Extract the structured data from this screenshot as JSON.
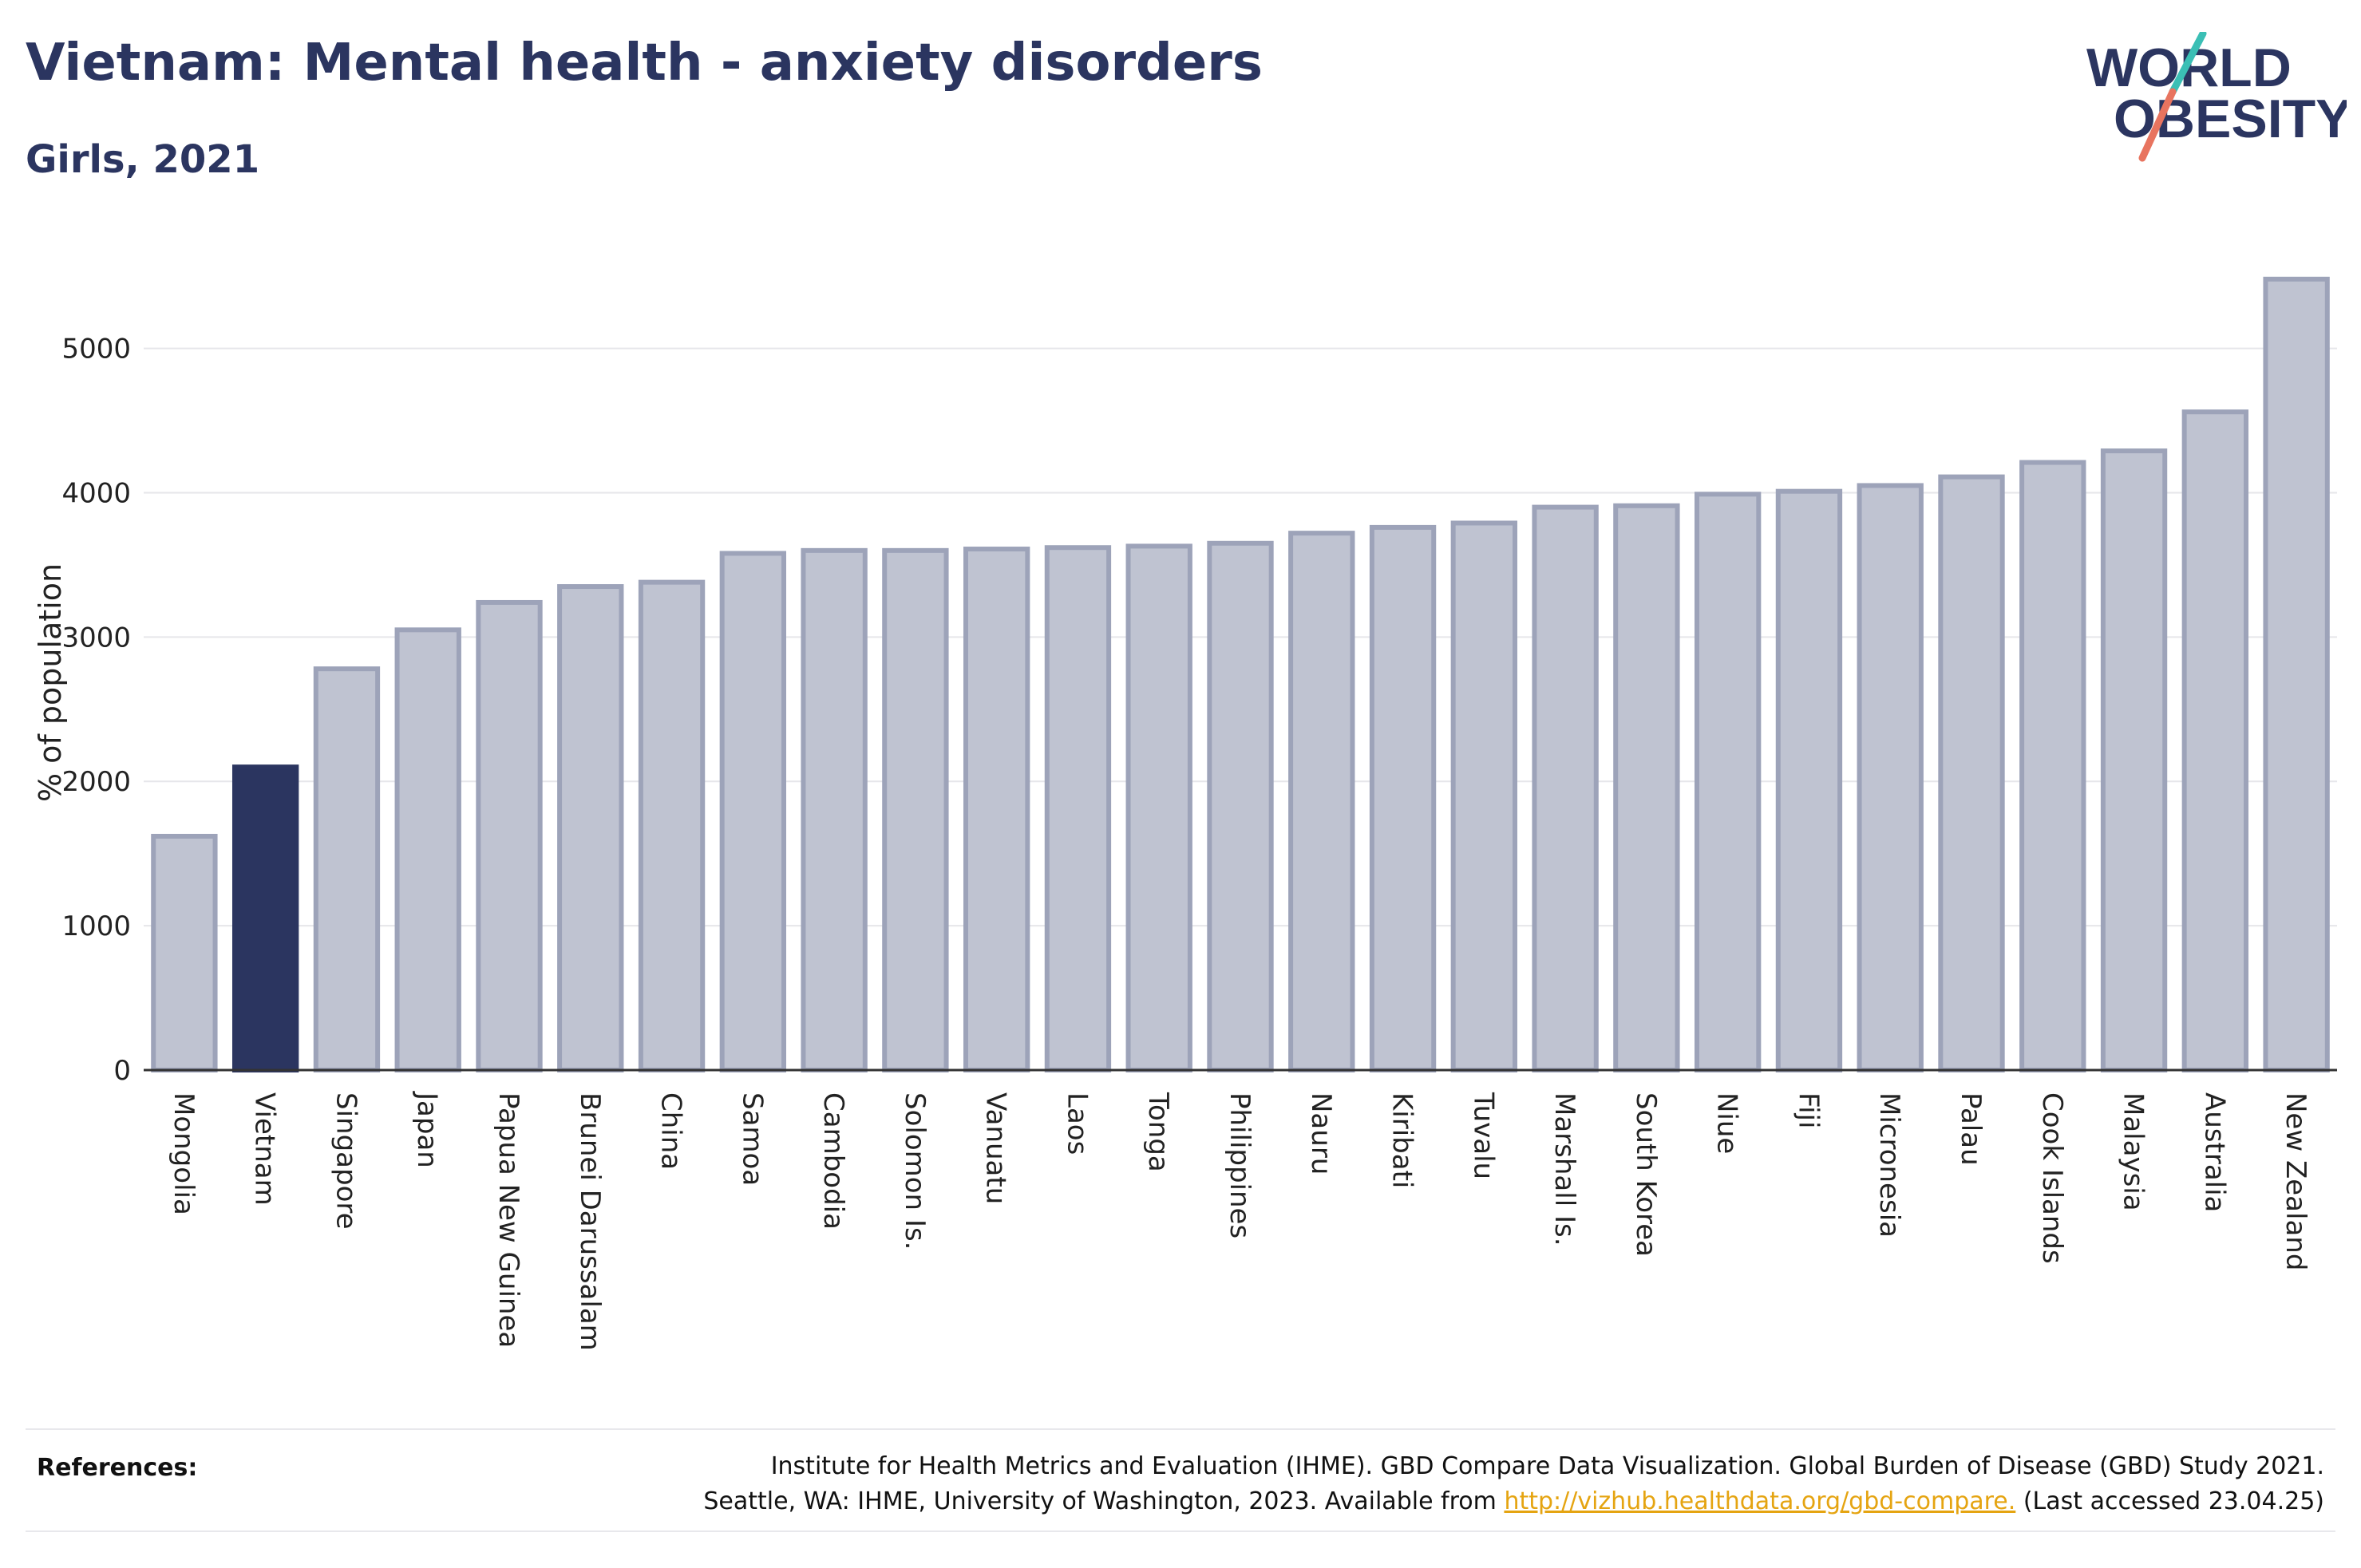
{
  "header": {
    "title": "Vietnam: Mental health - anxiety disorders",
    "subtitle": "Girls, 2021"
  },
  "logo": {
    "line1": "WORLD",
    "line2": "OBESITY",
    "accent_colors": [
      "#3bbfb5",
      "#e8745f"
    ]
  },
  "references": {
    "label": "References:",
    "line1": "Institute for Health Metrics and Evaluation (IHME). GBD Compare Data Visualization. Global Burden of Disease (GBD) Study 2021.",
    "line2_prefix": "Seattle, WA: IHME, University of Washington, 2023. Available from",
    "link": "http://vizhub.healthdata.org/gbd-compare.",
    "line2_suffix": "(Last accessed 23.04.25)"
  },
  "colors": {
    "highlight": "#2b3560",
    "bar_fill": "#bfc3d1",
    "bar_stroke": "#9da3b9",
    "grid": "#e6e6ea",
    "axis": "#333333"
  },
  "chart_data": {
    "type": "bar",
    "ylabel": "% of population",
    "ylim": [
      0,
      5700
    ],
    "yticks": [
      0,
      1000,
      2000,
      3000,
      4000,
      5000
    ],
    "grid": true,
    "highlight": "Vietnam",
    "categories": [
      "Mongolia",
      "Vietnam",
      "Singapore",
      "Japan",
      "Papua New Guinea",
      "Brunei Darussalam",
      "China",
      "Samoa",
      "Cambodia",
      "Solomon Is.",
      "Vanuatu",
      "Laos",
      "Tonga",
      "Philippines",
      "Nauru",
      "Kiribati",
      "Tuvalu",
      "Marshall Is.",
      "South Korea",
      "Niue",
      "Fiji",
      "Micronesia",
      "Palau",
      "Cook Islands",
      "Malaysia",
      "Australia",
      "New Zealand"
    ],
    "values": [
      1620,
      2100,
      2780,
      3050,
      3240,
      3350,
      3380,
      3580,
      3600,
      3600,
      3610,
      3620,
      3630,
      3650,
      3720,
      3760,
      3790,
      3900,
      3910,
      3990,
      4010,
      4050,
      4110,
      4210,
      4290,
      4560,
      5480
    ]
  }
}
